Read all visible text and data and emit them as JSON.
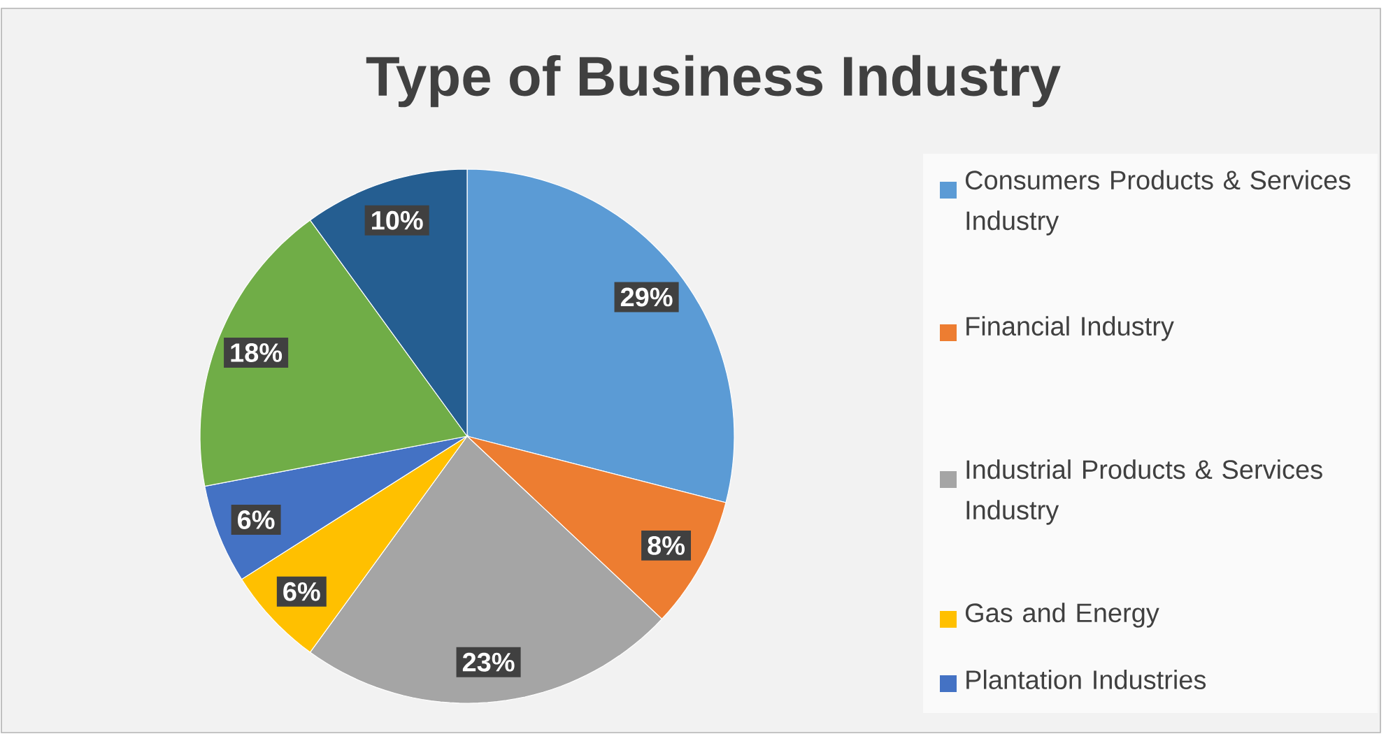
{
  "chart_data": {
    "type": "pie",
    "title": "Type of Business Industry",
    "categories": [
      "Consumers Products & Services Industry",
      "Financial Industry",
      "Industrial Products & Services Industry",
      "Gas and Energy",
      "Plantation Industries",
      null,
      null
    ],
    "values": [
      29,
      8,
      23,
      6,
      6,
      18,
      10
    ],
    "colors": [
      "#5b9bd5",
      "#ed7d31",
      "#a5a5a5",
      "#ffc000",
      "#4472c4",
      "#70ad47",
      "#255e91"
    ],
    "value_labels": [
      "29%",
      "8%",
      "23%",
      "6%",
      "6%",
      "18%",
      "10%"
    ],
    "legend": "right"
  }
}
